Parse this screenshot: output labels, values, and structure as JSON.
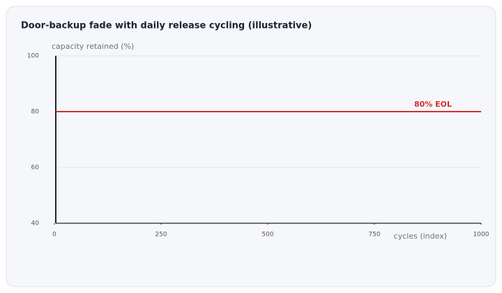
{
  "chart_data": {
    "type": "line",
    "title": "Door-backup fade with daily release cycling (illustrative)",
    "y_label": "capacity retained (%)",
    "x_label": "cycles (index)",
    "xlim": [
      0,
      1000
    ],
    "xticks": [
      0,
      250,
      500,
      750,
      1000
    ],
    "ylim": [
      40,
      100
    ],
    "yticks": [
      40,
      60,
      80,
      100
    ],
    "grid": true,
    "reference_line": {
      "value": 80,
      "label": "80% EOL",
      "color": "#d32f2f"
    }
  }
}
